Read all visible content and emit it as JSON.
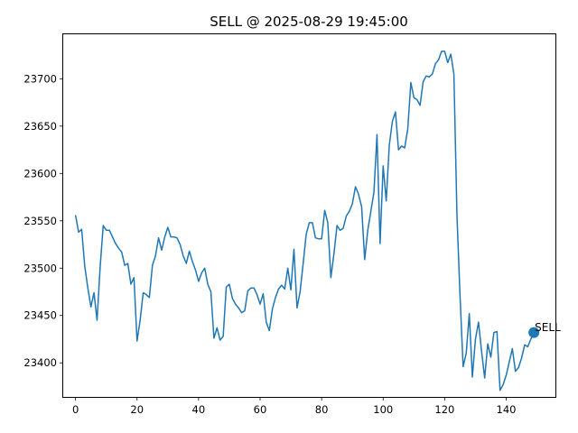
{
  "chart_data": {
    "type": "line",
    "title": "SELL @ 2025-08-29 19:45:00",
    "xlabel": "",
    "ylabel": "",
    "xlim": [
      -4,
      156
    ],
    "ylim": [
      23364,
      23747
    ],
    "xticks": [
      0,
      20,
      40,
      60,
      80,
      100,
      120,
      140
    ],
    "yticks": [
      23400,
      23450,
      23500,
      23550,
      23600,
      23650,
      23700
    ],
    "grid": false,
    "legend": "none",
    "series": [
      {
        "color": "#1f77b4",
        "y": [
          23556,
          23538,
          23541,
          23502,
          23479,
          23459,
          23474,
          23445,
          23501,
          23545,
          23540,
          23540,
          23533,
          23526,
          23521,
          23517,
          23503,
          23505,
          23483,
          23490,
          23423,
          23445,
          23474,
          23472,
          23469,
          23503,
          23513,
          23532,
          23519,
          23533,
          23543,
          23533,
          23533,
          23532,
          23525,
          23513,
          23505,
          23518,
          23507,
          23498,
          23486,
          23495,
          23500,
          23483,
          23475,
          23426,
          23437,
          23424,
          23428,
          23480,
          23483,
          23468,
          23462,
          23458,
          23453,
          23455,
          23476,
          23479,
          23479,
          23472,
          23462,
          23473,
          23443,
          23434,
          23457,
          23469,
          23478,
          23482,
          23478,
          23500,
          23477,
          23520,
          23458,
          23475,
          23505,
          23536,
          23548,
          23548,
          23532,
          23531,
          23531,
          23561,
          23548,
          23490,
          23515,
          23545,
          23540,
          23542,
          23555,
          23560,
          23568,
          23586,
          23578,
          23565,
          23509,
          23540,
          23560,
          23580,
          23641,
          23526,
          23608,
          23571,
          23630,
          23655,
          23665,
          23625,
          23629,
          23627,
          23647,
          23696,
          23680,
          23678,
          23672,
          23697,
          23703,
          23702,
          23705,
          23716,
          23720,
          23729,
          23729,
          23717,
          23726,
          23705,
          23555,
          23470,
          23396,
          23410,
          23452,
          23385,
          23425,
          23443,
          23412,
          23384,
          23420,
          23406,
          23432,
          23433,
          23371,
          23377,
          23387,
          23401,
          23415,
          23391,
          23395,
          23405,
          23419,
          23417,
          23425,
          23432
        ]
      }
    ],
    "marker": {
      "x": 149,
      "y": 23432,
      "label": "SELL",
      "color": "#1f77b4"
    }
  }
}
